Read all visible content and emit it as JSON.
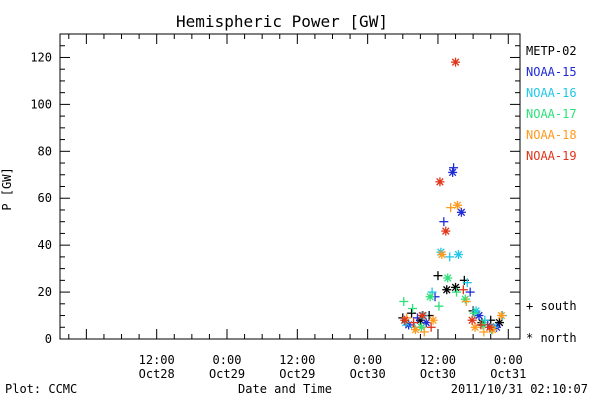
{
  "chart_data": {
    "type": "scatter",
    "title": "Hemispheric Power [GW]",
    "ylabel": "P [GW]",
    "xlabel": "Date and Time",
    "ylim": [
      0,
      130
    ],
    "xlim": [
      "2011-10-27T19:30",
      "2011-10-31T02:00"
    ],
    "y_ticks": [
      0,
      20,
      40,
      60,
      80,
      100,
      120
    ],
    "x_ticks": [
      {
        "time": "2011-10-28T12:00",
        "line1": "12:00",
        "line2": "Oct28"
      },
      {
        "time": "2011-10-29T00:00",
        "line1": "0:00",
        "line2": "Oct29"
      },
      {
        "time": "2011-10-29T12:00",
        "line1": "12:00",
        "line2": "Oct29"
      },
      {
        "time": "2011-10-30T00:00",
        "line1": "0:00",
        "line2": "Oct30"
      },
      {
        "time": "2011-10-30T12:00",
        "line1": "12:00",
        "line2": "Oct30"
      },
      {
        "time": "2011-10-31T00:00",
        "line1": "0:00",
        "line2": "Oct31"
      }
    ],
    "grid": false,
    "legend_position": "right",
    "marker_legend": {
      "south": "+ south",
      "north": "* north"
    },
    "series": [
      {
        "name": "METP-02",
        "color": "#000000",
        "points": [
          {
            "x": "2011-10-30T06:00",
            "y": 9,
            "hemi": "south"
          },
          {
            "x": "2011-10-30T07:30",
            "y": 11,
            "hemi": "south"
          },
          {
            "x": "2011-10-30T09:00",
            "y": 8,
            "hemi": "north"
          },
          {
            "x": "2011-10-30T10:30",
            "y": 10,
            "hemi": "south"
          },
          {
            "x": "2011-10-30T12:00",
            "y": 27,
            "hemi": "south"
          },
          {
            "x": "2011-10-30T13:30",
            "y": 21,
            "hemi": "north"
          },
          {
            "x": "2011-10-30T15:00",
            "y": 22,
            "hemi": "north"
          },
          {
            "x": "2011-10-30T16:30",
            "y": 25,
            "hemi": "south"
          },
          {
            "x": "2011-10-30T18:00",
            "y": 12,
            "hemi": "south"
          },
          {
            "x": "2011-10-30T19:30",
            "y": 7,
            "hemi": "north"
          },
          {
            "x": "2011-10-30T21:00",
            "y": 8,
            "hemi": "south"
          },
          {
            "x": "2011-10-30T22:30",
            "y": 7,
            "hemi": "north"
          }
        ]
      },
      {
        "name": "NOAA-15",
        "color": "#1f2bd6",
        "points": [
          {
            "x": "2011-10-30T07:00",
            "y": 6,
            "hemi": "north"
          },
          {
            "x": "2011-10-30T08:30",
            "y": 9,
            "hemi": "south"
          },
          {
            "x": "2011-10-30T10:00",
            "y": 7,
            "hemi": "north"
          },
          {
            "x": "2011-10-30T11:30",
            "y": 18,
            "hemi": "south"
          },
          {
            "x": "2011-10-30T13:00",
            "y": 50,
            "hemi": "south"
          },
          {
            "x": "2011-10-30T14:30",
            "y": 71,
            "hemi": "north"
          },
          {
            "x": "2011-10-30T14:40",
            "y": 73,
            "hemi": "south"
          },
          {
            "x": "2011-10-30T16:00",
            "y": 54,
            "hemi": "north"
          },
          {
            "x": "2011-10-30T17:30",
            "y": 20,
            "hemi": "south"
          },
          {
            "x": "2011-10-30T19:00",
            "y": 10,
            "hemi": "north"
          },
          {
            "x": "2011-10-30T20:30",
            "y": 6,
            "hemi": "south"
          },
          {
            "x": "2011-10-30T22:00",
            "y": 5,
            "hemi": "north"
          }
        ]
      },
      {
        "name": "NOAA-16",
        "color": "#1fc8e8",
        "points": [
          {
            "x": "2011-10-30T06:30",
            "y": 7,
            "hemi": "north"
          },
          {
            "x": "2011-10-30T08:00",
            "y": 5,
            "hemi": "south"
          },
          {
            "x": "2011-10-30T09:30",
            "y": 10,
            "hemi": "north"
          },
          {
            "x": "2011-10-30T11:00",
            "y": 20,
            "hemi": "south"
          },
          {
            "x": "2011-10-30T12:30",
            "y": 37,
            "hemi": "north"
          },
          {
            "x": "2011-10-30T14:00",
            "y": 35,
            "hemi": "south"
          },
          {
            "x": "2011-10-30T15:30",
            "y": 36,
            "hemi": "north"
          },
          {
            "x": "2011-10-30T17:00",
            "y": 24,
            "hemi": "south"
          },
          {
            "x": "2011-10-30T18:30",
            "y": 12,
            "hemi": "north"
          },
          {
            "x": "2011-10-30T20:00",
            "y": 8,
            "hemi": "south"
          },
          {
            "x": "2011-10-30T21:30",
            "y": 5,
            "hemi": "north"
          },
          {
            "x": "2011-10-30T23:00",
            "y": 10,
            "hemi": "south"
          }
        ]
      },
      {
        "name": "NOAA-17",
        "color": "#2de07a",
        "points": [
          {
            "x": "2011-10-30T06:10",
            "y": 16,
            "hemi": "south"
          },
          {
            "x": "2011-10-30T07:40",
            "y": 13,
            "hemi": "south"
          },
          {
            "x": "2011-10-30T09:10",
            "y": 5,
            "hemi": "north"
          },
          {
            "x": "2011-10-30T10:40",
            "y": 18,
            "hemi": "north"
          },
          {
            "x": "2011-10-30T12:10",
            "y": 14,
            "hemi": "south"
          },
          {
            "x": "2011-10-30T13:40",
            "y": 26,
            "hemi": "north"
          },
          {
            "x": "2011-10-30T15:10",
            "y": 20,
            "hemi": "south"
          },
          {
            "x": "2011-10-30T16:40",
            "y": 17,
            "hemi": "north"
          },
          {
            "x": "2011-10-30T18:10",
            "y": 11,
            "hemi": "south"
          },
          {
            "x": "2011-10-30T19:40",
            "y": 6,
            "hemi": "north"
          },
          {
            "x": "2011-10-30T21:10",
            "y": 4,
            "hemi": "south"
          }
        ]
      },
      {
        "name": "NOAA-18",
        "color": "#ff9a1e",
        "points": [
          {
            "x": "2011-10-30T06:40",
            "y": 9,
            "hemi": "south"
          },
          {
            "x": "2011-10-30T08:10",
            "y": 4,
            "hemi": "north"
          },
          {
            "x": "2011-10-30T09:40",
            "y": 3,
            "hemi": "south"
          },
          {
            "x": "2011-10-30T11:10",
            "y": 8,
            "hemi": "north"
          },
          {
            "x": "2011-10-30T12:40",
            "y": 36,
            "hemi": "north"
          },
          {
            "x": "2011-10-30T14:10",
            "y": 56,
            "hemi": "south"
          },
          {
            "x": "2011-10-30T15:20",
            "y": 57,
            "hemi": "north"
          },
          {
            "x": "2011-10-30T16:50",
            "y": 16,
            "hemi": "south"
          },
          {
            "x": "2011-10-30T18:20",
            "y": 5,
            "hemi": "north"
          },
          {
            "x": "2011-10-30T19:50",
            "y": 3,
            "hemi": "south"
          },
          {
            "x": "2011-10-30T21:20",
            "y": 4,
            "hemi": "north"
          },
          {
            "x": "2011-10-30T22:50",
            "y": 10,
            "hemi": "north"
          }
        ]
      },
      {
        "name": "NOAA-19",
        "color": "#e03418",
        "points": [
          {
            "x": "2011-10-30T06:20",
            "y": 8,
            "hemi": "north"
          },
          {
            "x": "2011-10-30T07:50",
            "y": 7,
            "hemi": "south"
          },
          {
            "x": "2011-10-30T09:20",
            "y": 10,
            "hemi": "north"
          },
          {
            "x": "2011-10-30T10:50",
            "y": 5,
            "hemi": "south"
          },
          {
            "x": "2011-10-30T12:20",
            "y": 67,
            "hemi": "north"
          },
          {
            "x": "2011-10-30T13:20",
            "y": 46,
            "hemi": "north"
          },
          {
            "x": "2011-10-30T15:00",
            "y": 118,
            "hemi": "north"
          },
          {
            "x": "2011-10-30T16:20",
            "y": 21,
            "hemi": "south"
          },
          {
            "x": "2011-10-30T17:50",
            "y": 8,
            "hemi": "north"
          },
          {
            "x": "2011-10-30T19:20",
            "y": 6,
            "hemi": "south"
          },
          {
            "x": "2011-10-30T20:50",
            "y": 5,
            "hemi": "north"
          }
        ]
      }
    ]
  },
  "footer": {
    "left": "Plot: CCMC",
    "right": "2011/10/31 02:10:07"
  }
}
